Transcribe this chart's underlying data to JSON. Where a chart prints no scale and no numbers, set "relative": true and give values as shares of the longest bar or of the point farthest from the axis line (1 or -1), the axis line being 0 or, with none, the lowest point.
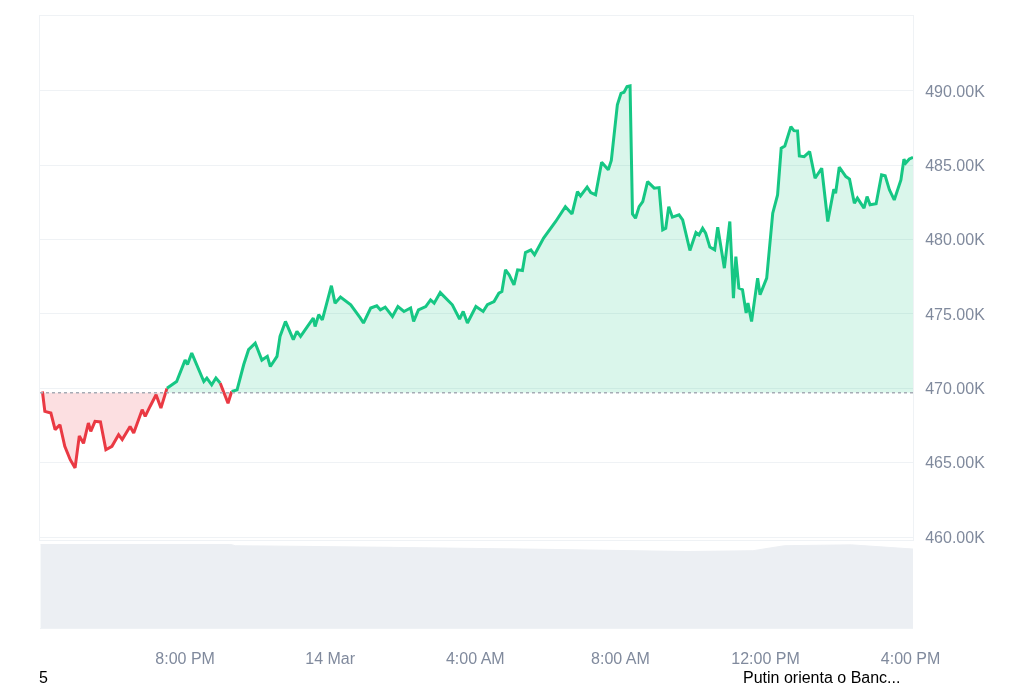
{
  "chart_data": [
    {
      "type": "area",
      "xlim": [
        "--03-13T16:00",
        "--03-14T16:04"
      ],
      "xticks": [
        {
          "value": "--03-13T20:00",
          "label": "8:00 PM"
        },
        {
          "value": "--03-14T00:00",
          "label": "14 Mar"
        },
        {
          "value": "--03-14T04:00",
          "label": "4:00 AM"
        },
        {
          "value": "--03-14T08:00",
          "label": "8:00 AM"
        },
        {
          "value": "--03-14T12:00",
          "label": "12:00 PM"
        },
        {
          "value": "--03-14T16:00",
          "label": "4:00 PM"
        }
      ],
      "ylim": [
        459.8,
        495.04
      ],
      "yticks": [
        {
          "value": 460,
          "label": "460.00K"
        },
        {
          "value": 465,
          "label": "465.00K"
        },
        {
          "value": 470,
          "label": "470.00K"
        },
        {
          "value": 475,
          "label": "475.00K"
        },
        {
          "value": 480,
          "label": "480.00K"
        },
        {
          "value": 485,
          "label": "485.00K"
        },
        {
          "value": 490,
          "label": "490.00K"
        }
      ],
      "tick_labels": "y",
      "grid": "y",
      "marker": "none",
      "line_style": "solid",
      "ref_lines": [
        {
          "axis": "y",
          "value": 469.7,
          "line_style": "dotted",
          "color": "#a6abb5"
        }
      ],
      "series": [
        {
          "color": "#ea3943",
          "x": [
            "--03-13T16:04",
            "--03-13T16:08",
            "--03-13T16:18",
            "--03-13T16:25",
            "--03-13T16:33",
            "--03-13T16:41",
            "--03-13T16:50",
            "--03-13T16:58",
            "--03-13T17:05",
            "--03-13T17:12",
            "--03-13T17:20",
            "--03-13T17:24",
            "--03-13T17:31",
            "--03-13T17:40",
            "--03-13T17:49",
            "--03-13T17:59",
            "--03-13T18:10",
            "--03-13T18:16",
            "--03-13T18:29",
            "--03-13T18:35",
            "--03-13T18:49",
            "--03-13T18:54",
            "--03-13T19:02",
            "--03-13T19:12",
            "--03-13T19:20",
            "--03-13T19:30",
            "--03-13T20:00",
            "--03-13T20:58",
            "--03-13T21:11",
            "--03-13T21:17"
          ],
          "values": [
            469.79,
            468.45,
            468.34,
            467.22,
            467.55,
            466.1,
            465.2,
            464.65,
            466.8,
            466.3,
            467.67,
            467.1,
            467.78,
            467.74,
            465.87,
            466.1,
            466.88,
            466.55,
            467.44,
            467.0,
            468.56,
            468.11,
            468.78,
            469.57,
            468.67,
            470.0,
            null,
            470.36,
            469.0,
            469.79
          ]
        },
        {
          "color": "#16c784",
          "x": [
            "--03-13T19:30",
            "--03-13T19:46",
            "--03-13T20:00",
            "--03-13T20:04",
            "--03-13T20:11",
            "--03-13T20:31",
            "--03-13T20:36",
            "--03-13T20:44",
            "--03-13T20:51",
            "--03-13T20:58",
            "--03-13T21:11",
            "--03-13T21:17",
            "--03-13T21:26",
            "--03-13T21:37",
            "--03-13T21:45",
            "--03-13T21:56",
            "--03-13T22:07",
            "--03-13T22:16",
            "--03-13T22:21",
            "--03-13T22:32",
            "--03-13T22:37",
            "--03-13T22:46",
            "--03-13T22:59",
            "--03-13T23:05",
            "--03-13T23:11",
            "--03-13T23:32",
            "--03-13T23:35",
            "--03-13T23:41",
            "--03-13T23:47",
            "--03-14T00:02",
            "--03-14T00:08",
            "--03-14T00:17",
            "--03-14T00:34",
            "--03-14T00:50",
            "--03-14T00:55",
            "--03-14T01:07",
            "--03-14T01:17",
            "--03-14T01:23",
            "--03-14T01:31",
            "--03-14T01:43",
            "--03-14T01:52",
            "--03-14T02:02",
            "--03-14T02:13",
            "--03-14T02:18",
            "--03-14T02:26",
            "--03-14T02:38",
            "--03-14T02:46",
            "--03-14T02:52",
            "--03-14T03:02",
            "--03-14T03:22",
            "--03-14T03:34",
            "--03-14T03:40",
            "--03-14T03:47",
            "--03-14T04:01",
            "--03-14T04:13",
            "--03-14T04:20",
            "--03-14T04:31",
            "--03-14T04:39",
            "--03-14T04:44",
            "--03-14T04:50",
            "--03-14T04:56",
            "--03-14T05:04",
            "--03-14T05:10",
            "--03-14T05:18",
            "--03-14T05:23",
            "--03-14T05:32",
            "--03-14T05:38",
            "--03-14T05:53",
            "--03-14T06:13",
            "--03-14T06:29",
            "--03-14T06:40",
            "--03-14T06:49",
            "--03-14T06:54",
            "--03-14T07:05",
            "--03-14T07:11",
            "--03-14T07:19",
            "--03-14T07:29",
            "--03-14T07:40",
            "--03-14T07:45",
            "--03-14T07:55",
            "--03-14T08:01",
            "--03-14T08:06",
            "--03-14T08:11",
            "--03-14T08:16",
            "--03-14T08:20",
            "--03-14T08:25",
            "--03-14T08:31",
            "--03-14T08:37",
            "--03-14T08:45",
            "--03-14T08:56",
            "--03-14T09:04",
            "--03-14T09:10",
            "--03-14T09:15",
            "--03-14T09:20",
            "--03-14T09:26",
            "--03-14T09:37",
            "--03-14T09:43",
            "--03-14T09:55",
            "--03-14T10:05",
            "--03-14T10:10",
            "--03-14T10:16",
            "--03-14T10:21",
            "--03-14T10:28",
            "--03-14T10:36",
            "--03-14T10:41",
            "--03-14T10:52",
            "--03-14T11:01",
            "--03-14T11:07",
            "--03-14T11:11",
            "--03-14T11:16",
            "--03-14T11:22",
            "--03-14T11:28",
            "--03-14T11:31",
            "--03-14T11:37",
            "--03-14T11:47",
            "--03-14T11:51",
            "--03-14T12:02",
            "--03-14T12:12",
            "--03-14T12:20",
            "--03-14T12:26",
            "--03-14T12:32",
            "--03-14T12:42",
            "--03-14T12:47",
            "--03-14T12:53",
            "--03-14T12:56",
            "--03-14T13:04",
            "--03-14T13:13",
            "--03-14T13:22",
            "--03-14T13:33",
            "--03-14T13:43",
            "--03-14T13:53",
            "--03-14T13:56",
            "--03-14T14:02",
            "--03-14T14:13",
            "--03-14T14:19",
            "--03-14T14:27",
            "--03-14T14:32",
            "--03-14T14:43",
            "--03-14T14:48",
            "--03-14T14:53",
            "--03-14T15:03",
            "--03-14T15:12",
            "--03-14T15:18",
            "--03-14T15:25",
            "--03-14T15:33",
            "--03-14T15:44",
            "--03-14T15:49",
            "--03-14T15:52",
            "--03-14T15:58",
            "--03-14T16:04"
          ],
          "values": [
            470.0,
            470.46,
            471.9,
            471.6,
            472.37,
            470.46,
            470.69,
            470.24,
            470.69,
            470.36,
            null,
            469.79,
            469.9,
            471.6,
            472.6,
            473.04,
            471.9,
            472.15,
            471.47,
            472.15,
            473.49,
            474.5,
            473.27,
            473.83,
            473.49,
            474.72,
            474.16,
            474.95,
            474.6,
            476.9,
            475.73,
            476.14,
            475.62,
            474.72,
            474.39,
            475.4,
            475.55,
            475.28,
            475.46,
            474.83,
            475.5,
            475.17,
            475.4,
            474.5,
            475.28,
            475.5,
            475.95,
            475.73,
            476.44,
            475.62,
            474.66,
            475.17,
            474.39,
            475.5,
            475.17,
            475.62,
            475.84,
            476.4,
            476.51,
            477.97,
            477.63,
            476.96,
            477.97,
            477.92,
            479.13,
            479.31,
            478.98,
            480.1,
            481.22,
            482.22,
            481.73,
            483.23,
            482.94,
            483.53,
            483.17,
            483.01,
            485.2,
            484.7,
            485.32,
            489.06,
            489.84,
            489.91,
            490.29,
            490.34,
            481.73,
            481.44,
            482.22,
            482.56,
            483.9,
            483.46,
            483.5,
            480.66,
            480.77,
            482.22,
            481.51,
            481.67,
            481.33,
            479.27,
            480.48,
            480.32,
            480.77,
            480.44,
            479.5,
            479.31,
            480.84,
            478.08,
            481.22,
            476.07,
            478.86,
            476.74,
            476.63,
            475.06,
            475.73,
            474.5,
            477.41,
            476.29,
            477.41,
            481.78,
            483.01,
            486.15,
            486.3,
            487.6,
            487.33,
            487.31,
            485.63,
            485.58,
            485.92,
            484.13,
            484.8,
            481.22,
            483.39,
            483.12,
            484.87,
            484.24,
            484.07,
            482.45,
            482.79,
            482.12,
            482.9,
            482.34,
            482.41,
            484.35,
            484.29,
            483.35,
            482.67,
            484.02,
            485.41,
            485.15,
            485.43,
            485.54
          ]
        }
      ]
    },
    {
      "type": "area",
      "relative": true,
      "xlim": [
        "--03-13T16:00",
        "--03-14T16:04"
      ],
      "xticks": [
        {
          "value": "--03-13T20:00",
          "label": "8:00 PM"
        },
        {
          "value": "--03-14T00:00",
          "label": "14 Mar"
        },
        {
          "value": "--03-14T04:00",
          "label": "4:00 AM"
        },
        {
          "value": "--03-14T08:00",
          "label": "8:00 AM"
        },
        {
          "value": "--03-14T12:00",
          "label": "12:00 PM"
        },
        {
          "value": "--03-14T16:00",
          "label": "4:00 PM"
        }
      ],
      "tick_labels": "x",
      "marker": "none",
      "annotations": [
        "5",
        "Putin orienta o Banc..."
      ],
      "series": [
        {
          "color": "#eceff3",
          "x": [
            "--03-13T16:01",
            "--03-13T19:02",
            "--03-13T21:13",
            "--03-13T21:23",
            "--03-14T01:43",
            "--03-14T05:20",
            "--03-14T09:50",
            "--03-14T11:39",
            "--03-14T12:32",
            "--03-14T14:22",
            "--03-14T16:04"
          ],
          "values": [
            1,
            1,
            1,
            0.98,
            0.96,
            0.94,
            0.91,
            0.92,
            0.98,
            0.99,
            0.94
          ]
        }
      ]
    }
  ]
}
